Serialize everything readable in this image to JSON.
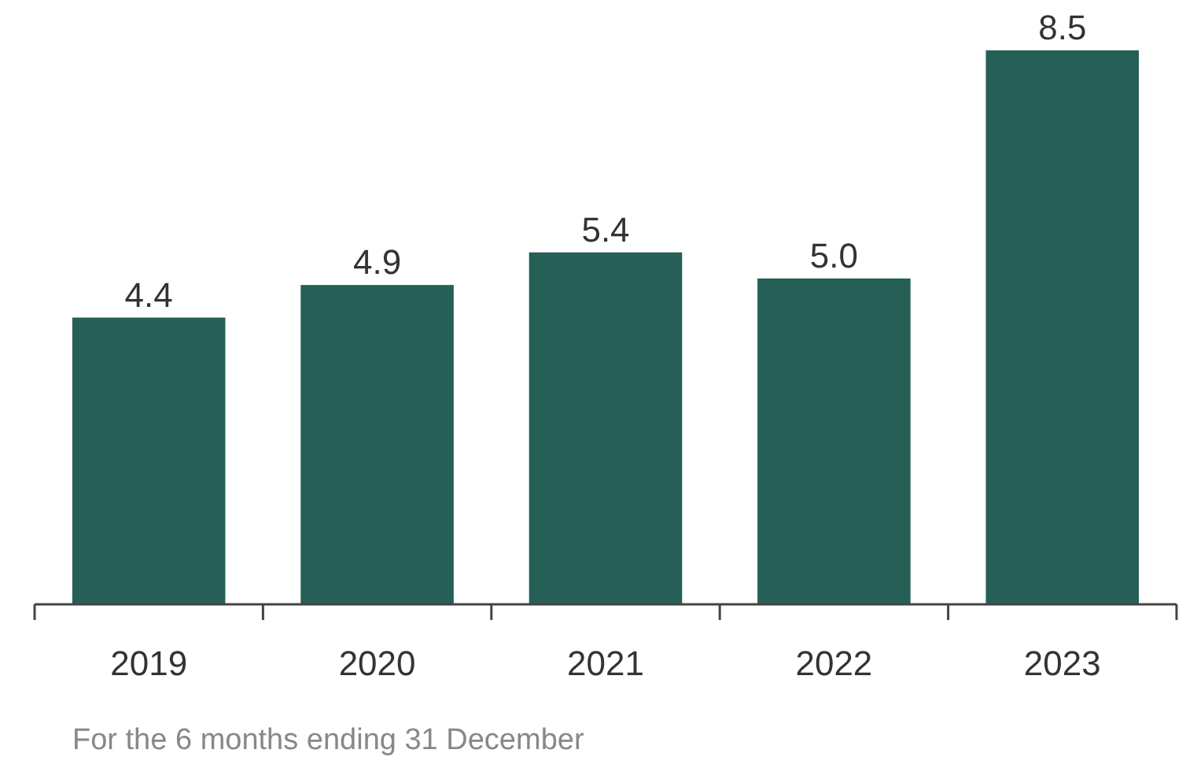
{
  "chart_data": {
    "type": "bar",
    "categories": [
      "2019",
      "2020",
      "2021",
      "2022",
      "2023"
    ],
    "values": [
      4.4,
      4.9,
      5.4,
      5.0,
      8.5
    ],
    "color": "#255f55",
    "value_labels": [
      "4.4",
      "4.9",
      "5.4",
      "5.0",
      "8.5"
    ],
    "annotations": [
      "For the 6 months ending 31 December"
    ]
  }
}
